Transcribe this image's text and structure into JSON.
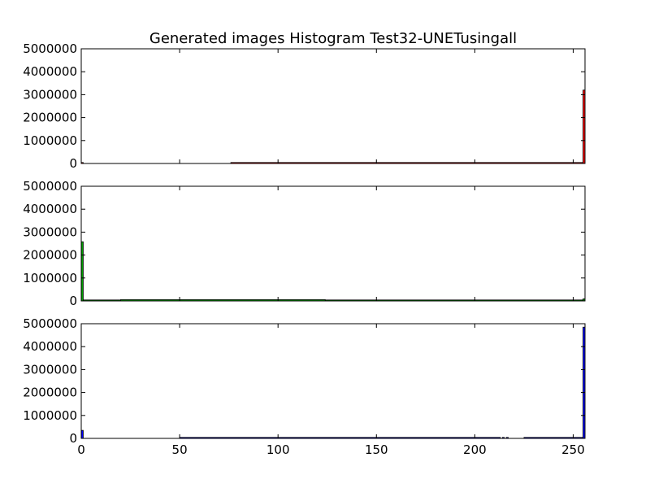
{
  "chart_data": {
    "type": "bar",
    "title": "Generated images Histogram Test32-UNETusingall",
    "xlabel": "",
    "ylabel": "",
    "xlim": [
      0,
      256
    ],
    "ylim": [
      0,
      5000000
    ],
    "x_ticks": [
      0,
      50,
      100,
      150,
      200,
      250
    ],
    "x_tick_labels": [
      "0",
      "50",
      "100",
      "150",
      "200",
      "250"
    ],
    "y_ticks": [
      0,
      1000000,
      2000000,
      3000000,
      4000000,
      5000000
    ],
    "y_tick_labels": [
      "0",
      "1000000",
      "2000000",
      "3000000",
      "4000000",
      "5000000"
    ],
    "grid": false,
    "panels": [
      {
        "channel": "red",
        "color": "#ff0000",
        "bars": [
          {
            "x0": 0,
            "x1": 1,
            "value": 20000
          },
          {
            "x0": 76,
            "x1": 255,
            "value": 30000
          },
          {
            "x0": 255,
            "x1": 256,
            "value": 3200000
          }
        ]
      },
      {
        "channel": "green",
        "color": "#00a000",
        "bars": [
          {
            "x0": 0,
            "x1": 1,
            "value": 2580000
          },
          {
            "x0": 1,
            "x1": 20,
            "value": 25000
          },
          {
            "x0": 20,
            "x1": 124,
            "value": 55000
          },
          {
            "x0": 124,
            "x1": 255,
            "value": 30000
          },
          {
            "x0": 255,
            "x1": 256,
            "value": 90000
          }
        ]
      },
      {
        "channel": "blue",
        "color": "#0000ff",
        "bars": [
          {
            "x0": 0,
            "x1": 1,
            "value": 350000
          },
          {
            "x0": 50,
            "x1": 213,
            "value": 35000
          },
          {
            "x0": 214,
            "x1": 215,
            "value": 25000
          },
          {
            "x0": 216,
            "x1": 217,
            "value": 25000
          },
          {
            "x0": 225,
            "x1": 255,
            "value": 30000
          },
          {
            "x0": 255,
            "x1": 256,
            "value": 4850000
          }
        ]
      }
    ]
  }
}
